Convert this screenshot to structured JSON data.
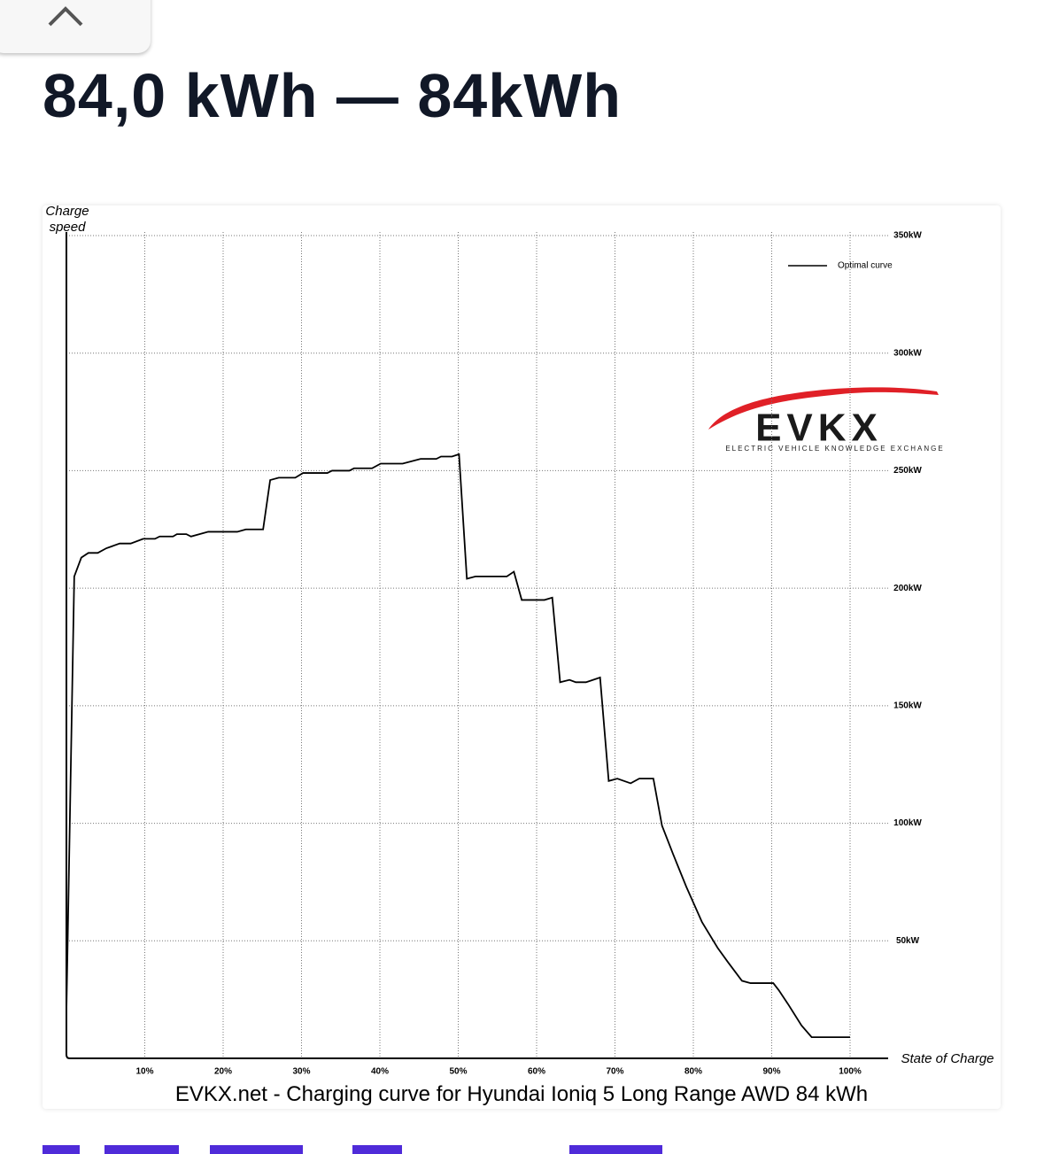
{
  "header": {
    "title": "84,0 kWh — 84kWh"
  },
  "chart_data": {
    "type": "line",
    "y_label": "Charge speed",
    "x_label": "State of Charge",
    "caption": "EVKX.net - Charging curve for Hyundai Ioniq 5 Long Range AWD 84 kWh",
    "logo": {
      "name": "EVKX",
      "tagline": "ELECTRIC VEHICLE KNOWLEDGE EXCHANGE"
    },
    "x": [
      0,
      1.0,
      1.9,
      2.8,
      4.0,
      5.1,
      6.8,
      8.2,
      9.8,
      11.3,
      11.9,
      13.6,
      14.1,
      15.3,
      15.9,
      18.1,
      21.8,
      22.9,
      25.1,
      26.0,
      27.1,
      29.2,
      30.2,
      33.3,
      33.9,
      36.1,
      36.7,
      39.0,
      40.1,
      42.9,
      45.2,
      47.2,
      47.8,
      49.2,
      50.1,
      51.1,
      52.2,
      56.2,
      57.1,
      58.1,
      61.0,
      62.0,
      63.0,
      64.2,
      65.0,
      66.3,
      68.1,
      69.2,
      70.3,
      72.0,
      73.1,
      74.9,
      76.0,
      77.4,
      79.1,
      81.1,
      83.1,
      84.4,
      86.2,
      87.3,
      90.2,
      90.9,
      92.1,
      93.8,
      95.1,
      97.7,
      100
    ],
    "series": [
      {
        "name": "Optimal curve",
        "color": "#000000",
        "values": [
          20,
          205,
          213,
          215,
          215,
          217,
          219,
          219,
          221,
          221,
          222,
          222,
          223,
          223,
          222,
          224,
          224,
          225,
          225,
          246,
          247,
          247,
          249,
          249,
          250,
          250,
          251,
          251,
          253,
          253,
          255,
          255,
          256,
          256,
          257,
          204,
          205,
          205,
          207,
          195,
          195,
          196,
          160,
          161,
          160,
          160,
          162,
          118,
          119,
          117,
          119,
          119,
          99,
          87,
          73,
          58,
          47,
          41,
          33,
          32,
          32,
          29,
          23,
          14,
          9,
          9,
          9
        ]
      }
    ],
    "xlim": [
      0,
      100
    ],
    "ylim": [
      0,
      350
    ],
    "xticks": [
      {
        "value": 10,
        "label": "10%"
      },
      {
        "value": 20,
        "label": "20%"
      },
      {
        "value": 30,
        "label": "30%"
      },
      {
        "value": 40,
        "label": "40%"
      },
      {
        "value": 50,
        "label": "50%"
      },
      {
        "value": 60,
        "label": "60%"
      },
      {
        "value": 70,
        "label": "70%"
      },
      {
        "value": 80,
        "label": "80%"
      },
      {
        "value": 90,
        "label": "90%"
      },
      {
        "value": 100,
        "label": "100%"
      }
    ],
    "yticks": [
      {
        "value": 50,
        "label": "50kW"
      },
      {
        "value": 100,
        "label": "100kW"
      },
      {
        "value": 150,
        "label": "150kW"
      },
      {
        "value": 200,
        "label": "200kW"
      },
      {
        "value": 250,
        "label": "250kW"
      },
      {
        "value": 300,
        "label": "300kW"
      },
      {
        "value": 350,
        "label": "350kW"
      }
    ],
    "grid": true,
    "legend": "upper right"
  }
}
